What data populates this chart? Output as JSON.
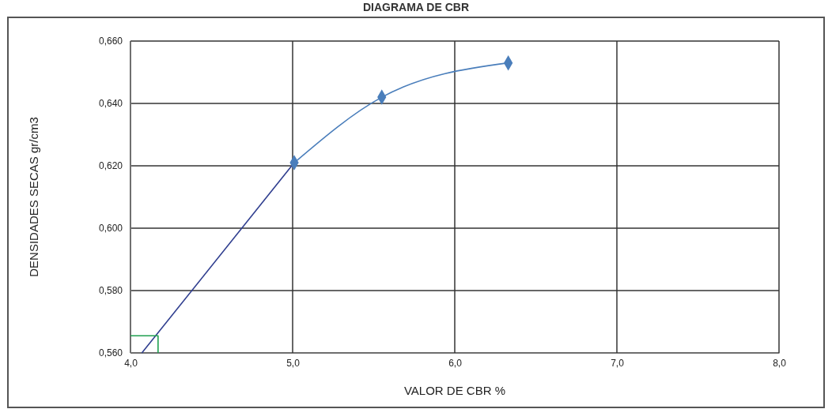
{
  "chart_data": {
    "type": "line",
    "title": "DIAGRAMA DE CBR",
    "xlabel": "VALOR  DE CBR %",
    "ylabel": "DENSIDADES  SECAS  gr/cm3",
    "xlim": [
      4.0,
      8.0
    ],
    "xticks": [
      {
        "value": 4,
        "label": "4,0"
      },
      {
        "value": 5,
        "label": "5,0"
      },
      {
        "value": 6,
        "label": "6,0"
      },
      {
        "value": 7,
        "label": "7,0"
      },
      {
        "value": 8,
        "label": "8,0"
      }
    ],
    "ylim": [
      0.56,
      0.66
    ],
    "yticks": [
      {
        "value": 0.56,
        "label": "0,560"
      },
      {
        "value": 0.58,
        "label": "0,580"
      },
      {
        "value": 0.6,
        "label": "0,600"
      },
      {
        "value": 0.62,
        "label": "0,620"
      },
      {
        "value": 0.64,
        "label": "0,640"
      },
      {
        "value": 0.66,
        "label": "0,660"
      }
    ],
    "grid": true,
    "series": [
      {
        "color": "#2f3e8f",
        "x": [
          4.07,
          5.01
        ],
        "values": [
          0.56,
          0.621
        ],
        "marker": "none"
      },
      {
        "color": "#20a050",
        "x": [
          4.0,
          4.17,
          4.17
        ],
        "values": [
          0.5655,
          0.5655,
          0.56
        ],
        "marker": "none"
      },
      {
        "color": "#4a7ebb",
        "x": [
          5.01,
          5.55,
          6.33
        ],
        "values": [
          0.621,
          0.642,
          0.653
        ],
        "marker": "diamond"
      }
    ]
  }
}
